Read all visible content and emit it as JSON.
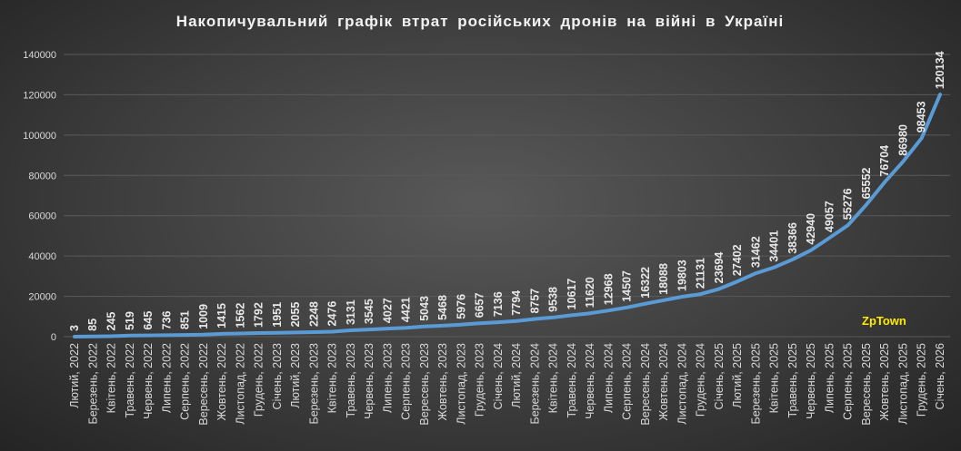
{
  "chart_data": {
    "type": "line",
    "title": "Накопичувальний графік втрат російських дронів на війні в Україні",
    "xlabel": "",
    "ylabel": "",
    "ylim": [
      0,
      140000
    ],
    "yticks": [
      0,
      20000,
      40000,
      60000,
      80000,
      100000,
      120000,
      140000
    ],
    "grid": true,
    "color": "#5b9bd5",
    "watermark": "ZpTown",
    "categories": [
      "Лютий, 2022",
      "Березень, 2022",
      "Квітень, 2022",
      "Травень, 2022",
      "Червень, 2022",
      "Липень, 2022",
      "Серпень, 2022",
      "Вересень, 2022",
      "Жовтень, 2022",
      "Листопад, 2022",
      "Грудень, 2022",
      "Січень, 2023",
      "Лютий, 2023",
      "Березень, 2023",
      "Квітень, 2023",
      "Травень, 2023",
      "Червень, 2023",
      "Липень, 2023",
      "Серпень, 2023",
      "Вересень, 2023",
      "Жовтень, 2023",
      "Листопад, 2023",
      "Грудень, 2023",
      "Січень, 2024",
      "Лютий, 2024",
      "Березень, 2024",
      "Квітень, 2024",
      "Травень, 2024",
      "Червень, 2024",
      "Липень, 2024",
      "Серпень, 2024",
      "Вересень, 2024",
      "Жовтень, 2024",
      "Листопад, 2024",
      "Грудень, 2024",
      "Січень, 2025",
      "Лютий, 2025",
      "Березень, 2025",
      "Квітень, 2025",
      "Травень, 2025",
      "Червень, 2025",
      "Липень, 2025",
      "Серпень, 2025",
      "Вересень, 2025",
      "Жовтень, 2025",
      "Листопад, 2025",
      "Грудень, 2025",
      "Січень, 2026"
    ],
    "values": [
      3,
      85,
      245,
      519,
      645,
      736,
      851,
      1009,
      1415,
      1562,
      1792,
      1951,
      2055,
      2248,
      2476,
      3131,
      3545,
      4027,
      4421,
      5043,
      5468,
      5976,
      6657,
      7136,
      7794,
      8757,
      9538,
      10617,
      11620,
      12968,
      14507,
      16322,
      18088,
      19803,
      21131,
      23694,
      27402,
      31462,
      34401,
      38366,
      42940,
      49057,
      55276,
      65552,
      76704,
      86980,
      98453,
      120134
    ]
  }
}
